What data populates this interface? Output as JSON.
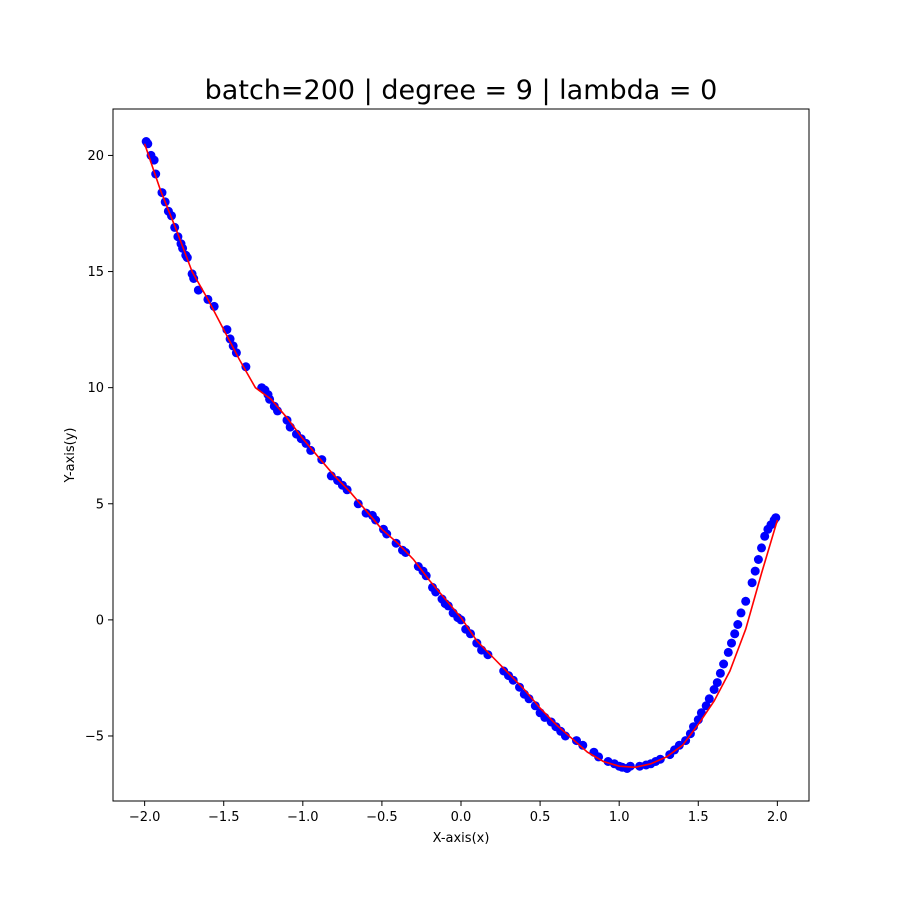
{
  "chart_data": {
    "type": "scatter",
    "title": "batch=200 | degree = 9 | lambda = 0",
    "xlabel": "X-axis(x)",
    "ylabel": "Y-axis(y)",
    "xlim": [
      -2.2,
      2.2
    ],
    "ylim": [
      -7.8,
      22.0
    ],
    "xticks": [
      -2.0,
      -1.5,
      -1.0,
      -0.5,
      0.0,
      0.5,
      1.0,
      1.5,
      2.0
    ],
    "xtick_labels": [
      "−2.0",
      "−1.5",
      "−1.0",
      "−0.5",
      "0.0",
      "0.5",
      "1.0",
      "1.5",
      "2.0"
    ],
    "yticks": [
      -5,
      0,
      5,
      10,
      15,
      20
    ],
    "ytick_labels": [
      "−5",
      "0",
      "5",
      "10",
      "15",
      "20"
    ],
    "grid": false,
    "series": [
      {
        "kind": "scatter",
        "color": "#0000ff",
        "x": [
          -1.99,
          -1.98,
          -1.96,
          -1.94,
          -1.93,
          -1.89,
          -1.87,
          -1.85,
          -1.83,
          -1.81,
          -1.79,
          -1.77,
          -1.76,
          -1.74,
          -1.73,
          -1.7,
          -1.69,
          -1.66,
          -1.6,
          -1.56,
          -1.48,
          -1.46,
          -1.44,
          -1.42,
          -1.36,
          -1.26,
          -1.24,
          -1.22,
          -1.21,
          -1.18,
          -1.16,
          -1.1,
          -1.08,
          -1.04,
          -1.01,
          -0.98,
          -0.95,
          -0.88,
          -0.82,
          -0.78,
          -0.75,
          -0.72,
          -0.65,
          -0.6,
          -0.56,
          -0.54,
          -0.49,
          -0.47,
          -0.41,
          -0.37,
          -0.35,
          -0.27,
          -0.24,
          -0.22,
          -0.18,
          -0.16,
          -0.12,
          -0.1,
          -0.08,
          -0.05,
          -0.02,
          0.0,
          0.03,
          0.06,
          0.1,
          0.13,
          0.17,
          0.27,
          0.3,
          0.33,
          0.37,
          0.4,
          0.43,
          0.47,
          0.5,
          0.53,
          0.57,
          0.6,
          0.63,
          0.66,
          0.73,
          0.77,
          0.84,
          0.87,
          0.93,
          0.97,
          1.0,
          1.02,
          1.05,
          1.07,
          1.13,
          1.17,
          1.2,
          1.23,
          1.26,
          1.32,
          1.35,
          1.38,
          1.42,
          1.45,
          1.47,
          1.5,
          1.52,
          1.55,
          1.57,
          1.6,
          1.62,
          1.64,
          1.66,
          1.69,
          1.71,
          1.73,
          1.75,
          1.77,
          1.8,
          1.84,
          1.86,
          1.88,
          1.9,
          1.92,
          1.94,
          1.96,
          1.98,
          1.99
        ],
        "y": [
          20.6,
          20.5,
          20.0,
          19.8,
          19.2,
          18.4,
          18.0,
          17.6,
          17.4,
          16.9,
          16.5,
          16.2,
          16.0,
          15.7,
          15.6,
          14.9,
          14.7,
          14.2,
          13.8,
          13.5,
          12.5,
          12.1,
          11.8,
          11.5,
          10.9,
          10.0,
          9.9,
          9.7,
          9.5,
          9.2,
          9.0,
          8.6,
          8.3,
          8.0,
          7.8,
          7.6,
          7.3,
          6.9,
          6.2,
          6.0,
          5.8,
          5.6,
          5.0,
          4.6,
          4.5,
          4.3,
          3.9,
          3.7,
          3.3,
          3.0,
          2.9,
          2.3,
          2.1,
          1.9,
          1.4,
          1.2,
          0.9,
          0.7,
          0.6,
          0.3,
          0.1,
          0.0,
          -0.4,
          -0.6,
          -1.0,
          -1.3,
          -1.5,
          -2.2,
          -2.4,
          -2.6,
          -2.9,
          -3.2,
          -3.4,
          -3.7,
          -4.0,
          -4.2,
          -4.4,
          -4.6,
          -4.8,
          -5.0,
          -5.2,
          -5.4,
          -5.7,
          -5.9,
          -6.1,
          -6.2,
          -6.3,
          -6.35,
          -6.4,
          -6.3,
          -6.3,
          -6.25,
          -6.2,
          -6.1,
          -6.0,
          -5.8,
          -5.6,
          -5.4,
          -5.2,
          -4.9,
          -4.6,
          -4.3,
          -4.0,
          -3.7,
          -3.4,
          -3.0,
          -2.7,
          -2.3,
          -1.9,
          -1.4,
          -1.0,
          -0.6,
          -0.2,
          0.3,
          0.8,
          1.6,
          2.1,
          2.6,
          3.1,
          3.6,
          3.9,
          4.1,
          4.3,
          4.4
        ]
      },
      {
        "kind": "line",
        "color": "#ff0000",
        "x": [
          -2.0,
          -1.9,
          -1.8,
          -1.7,
          -1.6,
          -1.5,
          -1.4,
          -1.3,
          -1.2,
          -1.1,
          -1.0,
          -0.9,
          -0.8,
          -0.7,
          -0.6,
          -0.5,
          -0.4,
          -0.3,
          -0.2,
          -0.1,
          0.0,
          0.1,
          0.2,
          0.3,
          0.4,
          0.5,
          0.6,
          0.7,
          0.8,
          0.9,
          1.0,
          1.1,
          1.2,
          1.3,
          1.4,
          1.5,
          1.6,
          1.7,
          1.8,
          1.9,
          2.0
        ],
        "y": [
          20.5,
          18.5,
          16.8,
          15.0,
          13.8,
          12.5,
          11.2,
          10.0,
          9.5,
          8.7,
          7.8,
          7.0,
          6.2,
          5.5,
          4.7,
          3.9,
          3.3,
          2.6,
          1.7,
          0.9,
          0.1,
          -0.9,
          -1.6,
          -2.3,
          -3.0,
          -3.8,
          -4.5,
          -5.1,
          -5.7,
          -6.1,
          -6.3,
          -6.35,
          -6.2,
          -5.9,
          -5.4,
          -4.5,
          -3.5,
          -2.2,
          -0.4,
          2.0,
          4.3
        ]
      }
    ]
  }
}
